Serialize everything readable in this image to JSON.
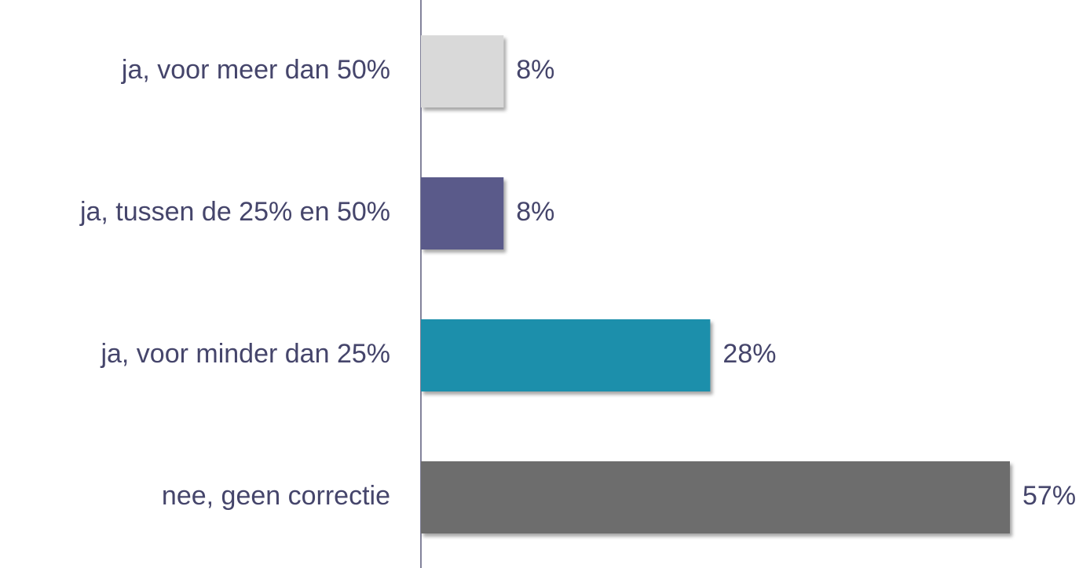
{
  "chart_data": {
    "type": "bar",
    "orientation": "horizontal",
    "categories": [
      "ja, voor meer dan 50%",
      "ja, tussen de 25% en 50%",
      "ja, voor minder dan 25%",
      "nee, geen correctie"
    ],
    "values": [
      8,
      8,
      28,
      57
    ],
    "value_labels": [
      "8%",
      "8%",
      "28%",
      "57%"
    ],
    "colors": [
      "#d9d9d9",
      "#5a5a8a",
      "#1f8fab",
      "#6d6d6d"
    ]
  }
}
